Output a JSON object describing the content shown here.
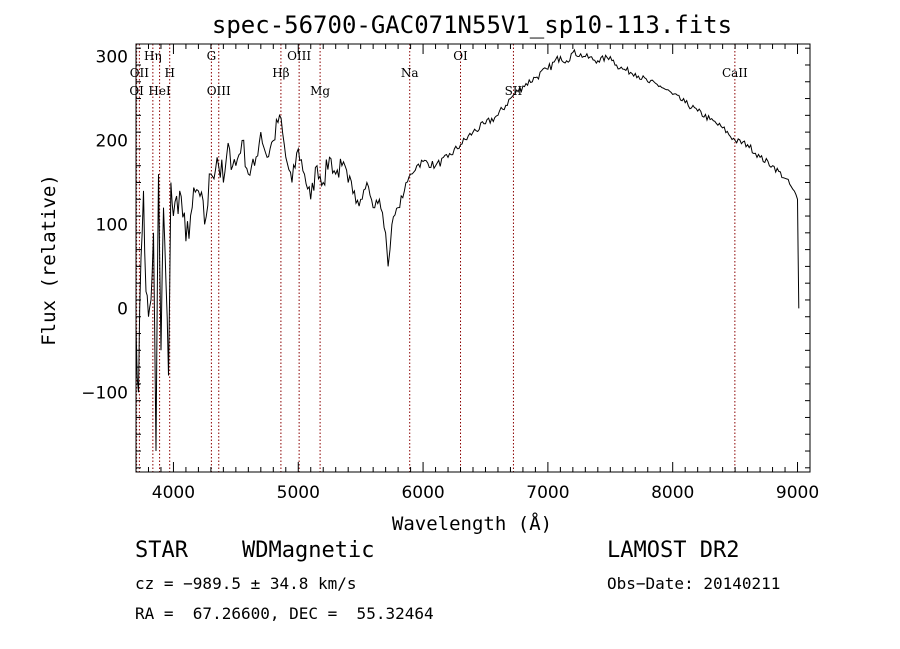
{
  "chart_data": {
    "type": "line",
    "title": "spec-56700-GAC071N55V1_sp10-113.fits",
    "xlabel": "Wavelength (Å)",
    "ylabel": "Flux (relative)",
    "xlim": [
      3700,
      9100
    ],
    "ylim": [
      -195,
      315
    ],
    "xticks": [
      4000,
      5000,
      6000,
      7000,
      8000,
      9000
    ],
    "yticks": [
      -100,
      0,
      100,
      200,
      300
    ],
    "xtick_labels": [
      "4000",
      "5000",
      "6000",
      "7000",
      "8000",
      "9000"
    ],
    "ytick_labels": [
      "−100",
      "0",
      "100",
      "200",
      "300"
    ],
    "grid": false,
    "line_color": "#000000",
    "marker_color": "#8b0000",
    "series": [
      {
        "x": [
          3700,
          3720,
          3740,
          3760,
          3780,
          3800,
          3820,
          3840,
          3860,
          3880,
          3900,
          3920,
          3940,
          3960,
          3980,
          4000,
          4050,
          4100,
          4150,
          4200,
          4250,
          4300,
          4350,
          4400,
          4450,
          4500,
          4550,
          4600,
          4650,
          4700,
          4750,
          4800,
          4850,
          4900,
          4950,
          5000,
          5050,
          5100,
          5150,
          5200,
          5250,
          5300,
          5350,
          5400,
          5450,
          5500,
          5550,
          5600,
          5650,
          5700,
          5720,
          5750,
          5800,
          5850,
          5900,
          5950,
          6000,
          6100,
          6200,
          6300,
          6400,
          6500,
          6600,
          6700,
          6800,
          6900,
          7000,
          7100,
          7150,
          7200,
          7300,
          7400,
          7500,
          7550,
          7600,
          7700,
          7800,
          7900,
          8000,
          8100,
          8200,
          8300,
          8400,
          8500,
          8600,
          8700,
          8800,
          8900,
          8950,
          9000,
          9010
        ],
        "y": [
          -20,
          -100,
          60,
          140,
          20,
          -10,
          10,
          90,
          -170,
          160,
          -50,
          120,
          30,
          -80,
          150,
          110,
          140,
          80,
          120,
          140,
          100,
          160,
          180,
          150,
          190,
          170,
          200,
          160,
          170,
          210,
          180,
          200,
          230,
          180,
          150,
          190,
          160,
          130,
          170,
          150,
          180,
          160,
          170,
          150,
          140,
          130,
          150,
          120,
          130,
          90,
          50,
          100,
          120,
          140,
          160,
          170,
          175,
          170,
          180,
          195,
          210,
          220,
          230,
          250,
          265,
          275,
          285,
          300,
          295,
          305,
          300,
          295,
          300,
          290,
          285,
          280,
          270,
          265,
          255,
          245,
          235,
          225,
          215,
          200,
          195,
          180,
          170,
          155,
          145,
          130,
          0
        ]
      }
    ],
    "line_markers": [
      {
        "name": "Hη",
        "x": 3835,
        "row": 1
      },
      {
        "name": "OII",
        "x": 3727,
        "row": 2
      },
      {
        "name": "H",
        "x": 3970,
        "row": 2
      },
      {
        "name": "OI",
        "x": 3705,
        "row": 3
      },
      {
        "name": "HeI",
        "x": 3889,
        "row": 3
      },
      {
        "name": "G",
        "x": 4304,
        "row": 1
      },
      {
        "name": "OIII",
        "x": 4363,
        "row": 3
      },
      {
        "name": "OIII",
        "x": 5007,
        "row": 1
      },
      {
        "name": "Hβ",
        "x": 4861,
        "row": 2
      },
      {
        "name": "Mg",
        "x": 5175,
        "row": 3
      },
      {
        "name": "Na",
        "x": 5893,
        "row": 2
      },
      {
        "name": "OI",
        "x": 6300,
        "row": 1
      },
      {
        "name": "SII",
        "x": 6724,
        "row": 3
      },
      {
        "name": "CaII",
        "x": 8498,
        "row": 2
      }
    ]
  },
  "info": {
    "class": "STAR",
    "subclass": "WDMagnetic",
    "survey": "LAMOST DR2",
    "cz": "cz = −989.5 ± 34.8 km/s",
    "obs_date": "Obs−Date: 20140211",
    "coords": "RA =  67.26600, DEC =  55.32464"
  }
}
